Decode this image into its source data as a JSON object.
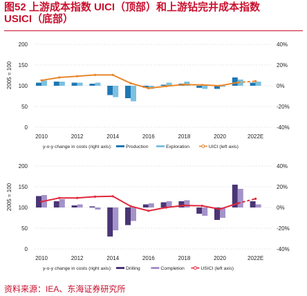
{
  "figure": {
    "title_line1": "图52 上游成本指数 UICI（顶部）和上游钻完井成本指数",
    "title_line2": "USICI（底部）",
    "source": "资料来源：IEA、东海证券研究所"
  },
  "chart_data": [
    {
      "type": "bar+line",
      "ylabel": "2005 = 100",
      "y_ticks_left": [
        "200",
        "150",
        "100",
        "50",
        "0"
      ],
      "y_ticks_right": [
        "40%",
        "20%",
        "0%",
        "-20%",
        "-40%"
      ],
      "ylim_left": [
        0,
        200
      ],
      "ylim_right": [
        -40,
        40
      ],
      "x_ticks": [
        "2010",
        "2012",
        "2014",
        "2016",
        "2018",
        "2020",
        "2022E"
      ],
      "legend_text": "y-o-y change in costs (right axis):",
      "colors": {
        "bar1": "#1e78b4",
        "bar2": "#7cc0e0",
        "line": "#e8862a"
      },
      "series": [
        {
          "name": "Production",
          "kind": "bar",
          "axis": "right",
          "values": [
            3,
            4,
            3,
            2,
            -9,
            -12,
            -2,
            1,
            2,
            -2,
            -3,
            8,
            3
          ]
        },
        {
          "name": "Exploration",
          "kind": "bar",
          "axis": "right",
          "values": [
            5,
            4,
            3,
            3,
            -11,
            -15,
            -3,
            3,
            4,
            -3,
            -1,
            6,
            4
          ]
        },
        {
          "name": "UICI (left axis)",
          "kind": "line",
          "axis": "left",
          "values": [
            113,
            120,
            123,
            126,
            126,
            106,
            94,
            99,
            103,
            102,
            100,
            108,
            111
          ],
          "dashed_from_index": 12
        }
      ]
    },
    {
      "type": "bar+line",
      "ylabel": "2005 = 100",
      "y_ticks_left": [
        "200",
        "150",
        "100",
        "50",
        "0"
      ],
      "y_ticks_right": [
        "40%",
        "20%",
        "0%",
        "-20%",
        "-40%"
      ],
      "ylim_left": [
        0,
        200
      ],
      "ylim_right": [
        -40,
        40
      ],
      "x_ticks": [
        "2010",
        "2012",
        "2014",
        "2016",
        "2018",
        "2020",
        "2022E"
      ],
      "legend_text": "y-o-y change in costs (right axis):",
      "colors": {
        "bar1": "#4a3576",
        "bar2": "#a493c9",
        "line": "#e0263a"
      },
      "series": [
        {
          "name": "Drilling",
          "kind": "bar",
          "axis": "right",
          "values": [
            11,
            6,
            2,
            1,
            -28,
            -17,
            3,
            5,
            6,
            -6,
            -12,
            22,
            6
          ]
        },
        {
          "name": "Completion",
          "kind": "bar",
          "axis": "right",
          "values": [
            12,
            8,
            3,
            -2,
            -22,
            -13,
            4,
            6,
            7,
            -8,
            -10,
            18,
            3
          ]
        },
        {
          "name": "USICI (left axis)",
          "kind": "line",
          "axis": "left",
          "values": [
            114,
            123,
            123,
            126,
            127,
            103,
            92,
            100,
            105,
            104,
            96,
            110,
            121
          ],
          "dashed_from_index": 12
        }
      ]
    }
  ]
}
